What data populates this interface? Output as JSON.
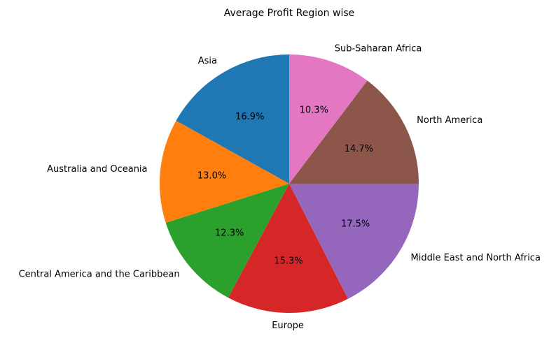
{
  "chart_data": {
    "type": "pie",
    "title": "Average Profit Region wise",
    "start_angle_deg": 90,
    "direction": "counterclockwise",
    "slices": [
      {
        "label": "Asia",
        "percent": 16.9,
        "percent_label": "16.9%",
        "color": "#1f77b4"
      },
      {
        "label": "Australia and Oceania",
        "percent": 13.0,
        "percent_label": "13.0%",
        "color": "#ff7f0e"
      },
      {
        "label": "Central America and the Caribbean",
        "percent": 12.3,
        "percent_label": "12.3%",
        "color": "#2ca02c"
      },
      {
        "label": "Europe",
        "percent": 15.3,
        "percent_label": "15.3%",
        "color": "#d62728"
      },
      {
        "label": "Middle East and North Africa",
        "percent": 17.5,
        "percent_label": "17.5%",
        "color": "#9467bd"
      },
      {
        "label": "North America",
        "percent": 14.7,
        "percent_label": "14.7%",
        "color": "#8c564b"
      },
      {
        "label": "Sub-Saharan Africa",
        "percent": 10.3,
        "percent_label": "10.3%",
        "color": "#e377c2"
      }
    ]
  }
}
